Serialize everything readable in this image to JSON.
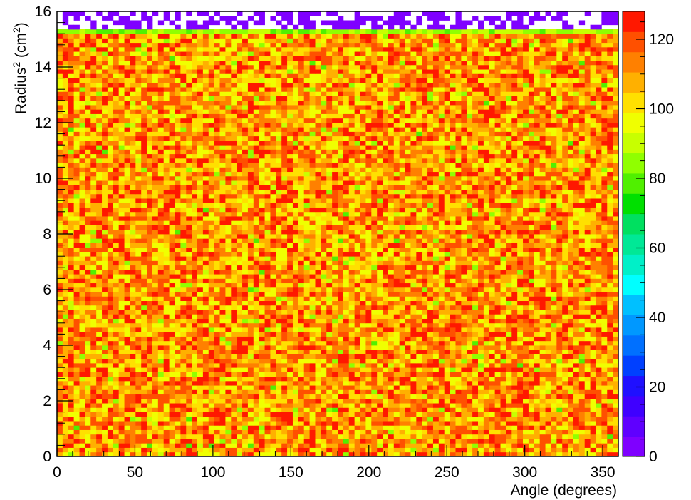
{
  "chart_data": {
    "type": "heatmap",
    "title": "",
    "xlabel": "Angle (degrees)",
    "ylabel_main": "Radius",
    "ylabel_sup": "2",
    "ylabel_unit_open": " (cm",
    "ylabel_unit_sup": "2",
    "ylabel_unit_close": ")",
    "xlim": [
      0,
      360
    ],
    "ylim": [
      0,
      16
    ],
    "zlim": [
      0,
      128
    ],
    "x_ticks": [
      0,
      50,
      100,
      150,
      200,
      250,
      300,
      350
    ],
    "y_ticks": [
      0,
      2,
      4,
      6,
      8,
      10,
      12,
      14,
      16
    ],
    "z_ticks": [
      0,
      20,
      40,
      60,
      80,
      100,
      120
    ],
    "bins_x": 100,
    "bins_y": 100,
    "bulk_region": {
      "y_from": 0,
      "y_to": 15.2,
      "typical_value": 110,
      "range": [
        88,
        128
      ]
    },
    "edge_row": {
      "y_from": 15.2,
      "y_to": 15.36,
      "typical_value": 85
    },
    "sparse_region": {
      "y_from": 15.36,
      "y_to": 16,
      "occupied_value": 5,
      "occupancy": 0.55
    },
    "palette": [
      "#7f00ff",
      "#5f00ff",
      "#3f00ff",
      "#1f10ff",
      "#0040ff",
      "#0070ff",
      "#0098ff",
      "#00c0ff",
      "#00ffff",
      "#00f0c8",
      "#00e896",
      "#00e060",
      "#00e000",
      "#50f000",
      "#90ff00",
      "#c8ff00",
      "#f0ff00",
      "#ffe000",
      "#ffb000",
      "#ff8000",
      "#ff5000",
      "#ff1800"
    ]
  }
}
